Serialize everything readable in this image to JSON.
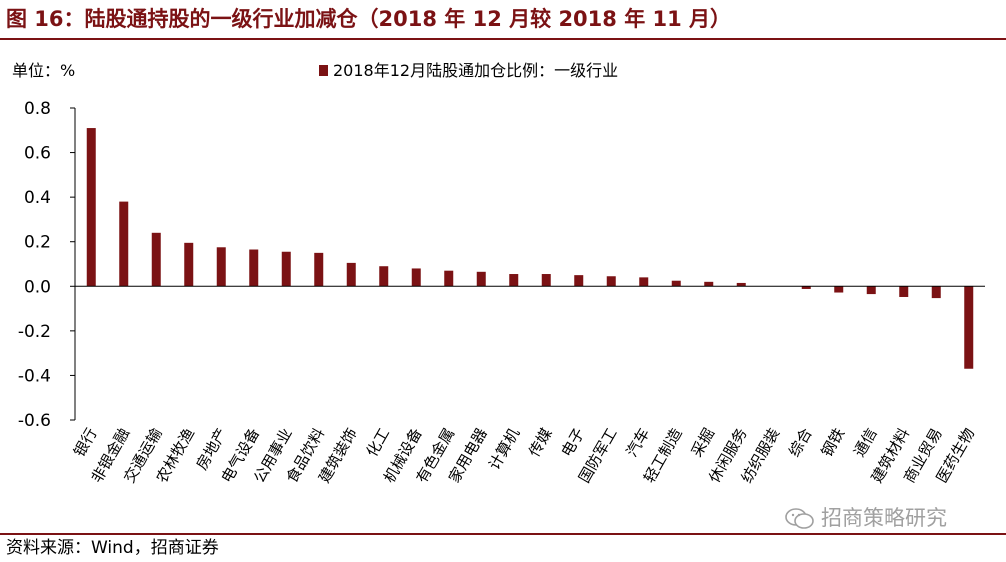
{
  "header": {
    "title": "图 16：陆股通持股的一级行业加减仓（2018 年 12 月较 2018 年 11 月）"
  },
  "footer": {
    "source": "资料来源：Wind，招商证券"
  },
  "watermark": {
    "text": "招商策略研究",
    "icon": "wechat-icon"
  },
  "colors": {
    "accent": "#7b1214",
    "bar": "#7b1214"
  },
  "chart_data": {
    "type": "bar",
    "unit_label": "单位：%",
    "legend": "2018年12月陆股通加仓比例：一级行业",
    "legend_position": "top-center",
    "categories": [
      "银行",
      "非银金融",
      "交通运输",
      "农林牧渔",
      "房地产",
      "电气设备",
      "公用事业",
      "食品饮料",
      "建筑装饰",
      "化工",
      "机械设备",
      "有色金属",
      "家用电器",
      "计算机",
      "传媒",
      "电子",
      "国防军工",
      "汽车",
      "轻工制造",
      "采掘",
      "休闲服务",
      "纺织服装",
      "综合",
      "钢铁",
      "通信",
      "建筑材料",
      "商业贸易",
      "医药生物"
    ],
    "series": [
      {
        "values": [
          0.71,
          0.38,
          0.24,
          0.195,
          0.175,
          0.165,
          0.155,
          0.15,
          0.105,
          0.09,
          0.08,
          0.07,
          0.065,
          0.055,
          0.055,
          0.05,
          0.045,
          0.04,
          0.025,
          0.02,
          0.015,
          0.0,
          -0.012,
          -0.028,
          -0.035,
          -0.048,
          -0.053,
          -0.37
        ]
      }
    ],
    "ylim": [
      -0.6,
      0.8
    ],
    "yticks": [
      "0.8",
      "0.6",
      "0.4",
      "0.2",
      "0.0",
      "-0.2",
      "-0.4",
      "-0.6"
    ],
    "grid": false
  }
}
